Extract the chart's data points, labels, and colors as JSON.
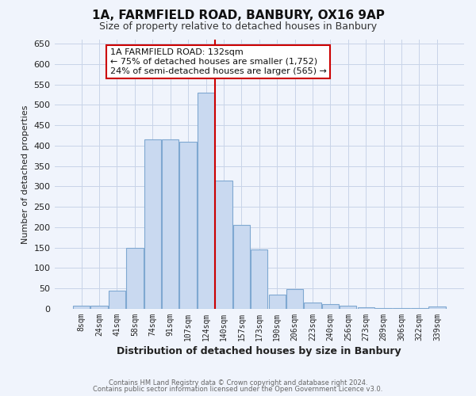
{
  "title": "1A, FARMFIELD ROAD, BANBURY, OX16 9AP",
  "subtitle": "Size of property relative to detached houses in Banbury",
  "xlabel": "Distribution of detached houses by size in Banbury",
  "ylabel": "Number of detached properties",
  "bar_labels": [
    "8sqm",
    "24sqm",
    "41sqm",
    "58sqm",
    "74sqm",
    "91sqm",
    "107sqm",
    "124sqm",
    "140sqm",
    "157sqm",
    "173sqm",
    "190sqm",
    "206sqm",
    "223sqm",
    "240sqm",
    "256sqm",
    "273sqm",
    "289sqm",
    "306sqm",
    "322sqm",
    "339sqm"
  ],
  "bar_heights": [
    8,
    8,
    45,
    150,
    415,
    415,
    410,
    530,
    315,
    205,
    145,
    35,
    48,
    15,
    12,
    8,
    3,
    2,
    2,
    2,
    5
  ],
  "bar_color": "#c9d9f0",
  "bar_edge_color": "#7fa8d1",
  "vline_color": "#cc0000",
  "annotation_title": "1A FARMFIELD ROAD: 132sqm",
  "annotation_line1": "← 75% of detached houses are smaller (1,752)",
  "annotation_line2": "24% of semi-detached houses are larger (565) →",
  "annotation_box_color": "#ffffff",
  "annotation_box_edge": "#cc0000",
  "ylim": [
    0,
    660
  ],
  "yticks": [
    0,
    50,
    100,
    150,
    200,
    250,
    300,
    350,
    400,
    450,
    500,
    550,
    600,
    650
  ],
  "footer1": "Contains HM Land Registry data © Crown copyright and database right 2024.",
  "footer2": "Contains public sector information licensed under the Open Government Licence v3.0.",
  "bg_color": "#f0f4fc",
  "grid_color": "#c8d4e8"
}
